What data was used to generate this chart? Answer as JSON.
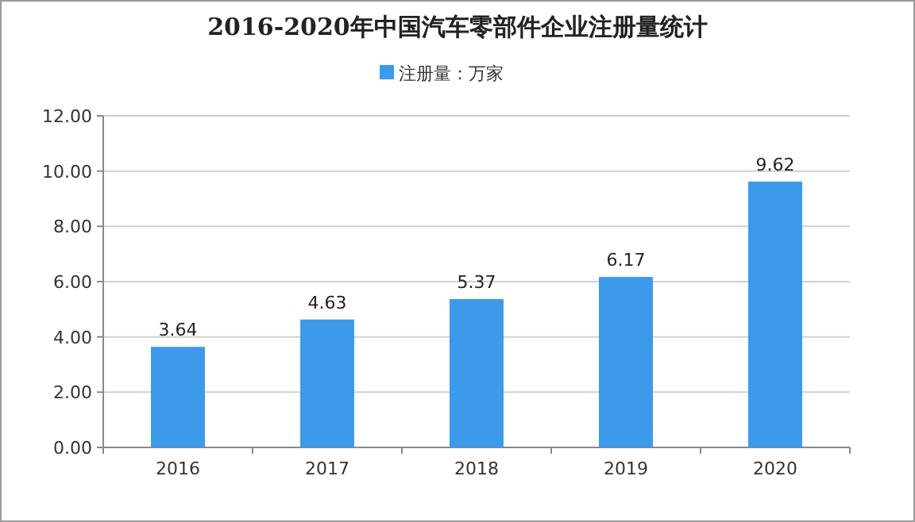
{
  "chart_data": {
    "type": "bar",
    "title": "2016-2020年中国汽车零部件企业注册量统计",
    "categories": [
      "2016",
      "2017",
      "2018",
      "2019",
      "2020"
    ],
    "series": [
      {
        "name": "注册量：万家",
        "color": "#3d9aea",
        "values": [
          3.64,
          4.63,
          5.37,
          6.17,
          9.62
        ]
      }
    ],
    "ylim": [
      0,
      12
    ],
    "yticks": [
      {
        "value": 0,
        "label": "0.00"
      },
      {
        "value": 2,
        "label": "2.00"
      },
      {
        "value": 4,
        "label": "4.00"
      },
      {
        "value": 6,
        "label": "6.00"
      },
      {
        "value": 8,
        "label": "8.00"
      },
      {
        "value": 10,
        "label": "10.00"
      },
      {
        "value": 12,
        "label": "12.00"
      }
    ],
    "grid": "y",
    "legend": "top",
    "data_labels": true
  }
}
